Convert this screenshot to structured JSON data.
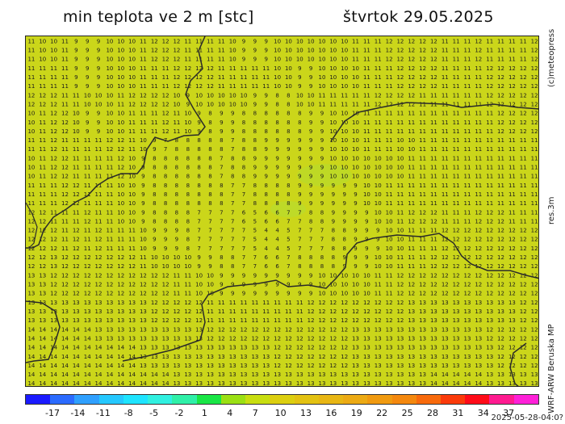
{
  "header": {
    "title": "min teplota ve 2 m [stc]",
    "date": "štvrtok 29.05.2025"
  },
  "side_labels": {
    "copyright": "(c)meteopress",
    "resolution": "res.3m",
    "model": "WRF-ARW Beruska MP"
  },
  "timestamp": "2025-05-28-04:0?",
  "colorbar": {
    "tick_labels": [
      "-17",
      "-14",
      "-11",
      "-8",
      "-5",
      "-2",
      "1",
      "4",
      "7",
      "10",
      "13",
      "16",
      "19",
      "22",
      "25",
      "28",
      "31",
      "34",
      "37"
    ],
    "colors": [
      "#1a1aff",
      "#2b6bff",
      "#2fa0ff",
      "#25c8ff",
      "#1ee4ff",
      "#30f0e0",
      "#2ff0a8",
      "#19e646",
      "#9be014",
      "#c8de10",
      "#dccf10",
      "#e3c212",
      "#e8b614",
      "#ecaa14",
      "#f09a10",
      "#f4880e",
      "#f86a0c",
      "#fb3a0a",
      "#ff0b18",
      "#ff1a90",
      "#ff20d8"
    ]
  },
  "map": {
    "background_color": "#cbd61a",
    "border_color": "#2a2a2a",
    "value_grid_sample": [
      "11 10 10 11 9 9 9 10 10 10 11 12 12 12 11 11 11 11 10 9 9 9 10 10 10 10 10 10 10 11 11 11 12 12 12 12 12 11 11 11 12 11 11 11 11 12",
      "11 11 11 11 9 9 9 10 10 10 11 11 11 12 12 12 12 11 11 11 11 11 10 10 9 9 10 10 10 10 11 11 11 12 12 12 12 11 11 11 11 12 12 12 12 12",
      "12 12 12 11 11 10 10 10 11 12 12 12 12 10 9 10 10 10 10 10 9 9 8 8 10 10 11 11 11 11 11 12 12 12 12 11 11 11 11 11 11 12 12 12 12 12",
      "10 11 12 12 10 9 9 10 10 11 11 11 12 11 10 9 8 9 9 8 8 8 8 8 8 9 9 10 10 10 11 11 11 11 11 11 11 11 11 11 11 11 12 12 12 12",
      "11 11 12 11 11 11 11 12 12 11 10 9 7 8 8 8 8 8 7 8 8 9 9 9 9 9 9 10 10 10 11 11 11 10 10 11 11 11 11 11 11 11 11 11 11 11",
      "10 11 12 12 11 11 11 11 12 10 9 8 8 8 8 8 8 7 8 8 9 9 9 9 9 9 9 10 10 10 10 10 10 10 11 11 11 11 11 11 11 11 11 11 11 11",
      "11 11 11 12 12 11 11 11 10 10 9 8 8 8 8 8 8 8 7 7 8 8 8 8 9 9 9 9 9 9 10 10 11 11 11 11 11 11 11 11 11 11 11 11 11 11",
      "12 12 11 11 11 12 11 11 10 10 9 8 8 8 8 7 7 7 7 6 5 6 6 7 7 8 8 9 9 9 9 10 10 11 12 12 12 11 11 11 12 12 12 11 11 11",
      "12 12 12 11 12 11 12 11 11 11 10 9 9 9 8 7 7 7 7 7 5 4 4 5 7 7 7 8 8 9 9 9 10 10 11 11 11 12 12 12 12 12 12 12 12 12",
      "12 12 13 12 12 12 12 12 12 12 11 10 10 10 10 9 9 8 8 7 7 6 6 7 8 8 8 8 9 9 9 10 10 11 11 11 12 12 12 12 12 12 12 12 12 12",
      "13 13 12 12 12 12 12 12 12 12 12 12 12 11 11 10 10 9 9 9 9 9 9 9 9 9 10 10 10 10 10 11 11 12 12 12 12 12 12 12 12 12 12 12 12 12",
      "13 13 13 13 13 13 13 13 13 13 13 12 12 12 12 12 11 11 11 11 11 11 11 11 11 12 12 12 12 12 12 12 12 12 13 13 13 13 13 13 13 13 13 13 12 12",
      "14 14 14 14 14 14 13 13 13 13 13 13 13 13 13 13 12 12 12 12 12 12 12 12 12 12 12 12 12 13 13 13 13 13 13 13 13 13 13 13 13 12 12 12 12 12",
      "14 14 14 14 14 14 14 14 14 14 13 13 13 13 13 13 13 13 13 13 13 13 12 12 12 12 12 12 12 13 13 13 13 13 13 13 13 13 13 13 13 13 12 12 12 12",
      "14 14 14 14 14 14 14 14 14 14 14 14 14 13 13 13 13 13 13 13 13 13 13 13 13 13 13 13 13 13 13 13 13 13 13 13 14 14 14 14 14 13 13 13 13 13"
    ]
  }
}
